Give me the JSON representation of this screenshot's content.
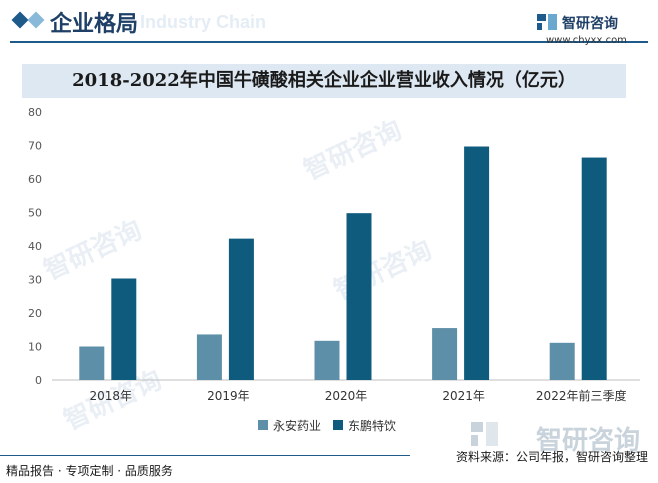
{
  "header": {
    "title": "企业格局",
    "ghost_text": "Industry Chain"
  },
  "brand": {
    "name": "智研咨询",
    "url": "www.chyxx.com",
    "primary_color": "#1e5a8a"
  },
  "footer": {
    "left_text": "精品报告 · 专项定制 · 品质服务",
    "source": "资料来源：公司年报，智研咨询整理",
    "brand_big": "智研咨询"
  },
  "chart_data": {
    "type": "bar",
    "title": "2018-2022年中国牛磺酸相关企业企业营业收入情况（亿元）",
    "categories": [
      "2018年",
      "2019年",
      "2020年",
      "2021年",
      "2022年前三季度"
    ],
    "series": [
      {
        "name": "永安药业",
        "color": "#5e8fa8",
        "values": [
          10.0,
          13.6,
          11.7,
          15.5,
          11.1
        ]
      },
      {
        "name": "东鹏特饮",
        "color": "#0f5b7e",
        "values": [
          30.3,
          42.2,
          49.8,
          69.7,
          66.4
        ]
      }
    ],
    "ylim": [
      0,
      80
    ],
    "yticks": [
      0,
      10,
      20,
      30,
      40,
      50,
      60,
      70,
      80
    ],
    "grid": false,
    "legend": "bottom-center"
  }
}
